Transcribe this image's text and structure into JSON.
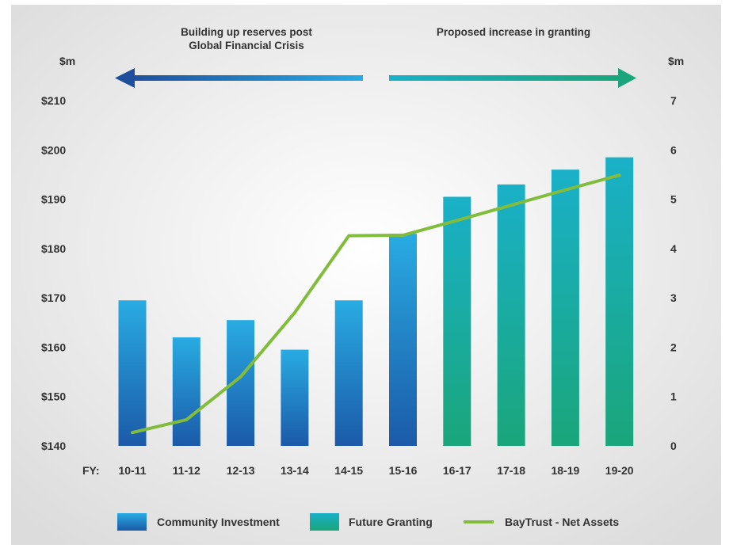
{
  "chart_data": {
    "type": "bar",
    "title": "",
    "annotations": {
      "left": "Building up reserves post\nGlobal Financial Crisis",
      "right": "Proposed increase in granting"
    },
    "left_axis": {
      "label": "$m",
      "ticks": [
        "$210",
        "$200",
        "$190",
        "$180",
        "$170",
        "$160",
        "$150",
        "$140"
      ],
      "range": [
        140,
        210
      ]
    },
    "right_axis": {
      "label": "$m",
      "ticks": [
        "7",
        "6",
        "5",
        "4",
        "3",
        "2",
        "1",
        "0"
      ],
      "range": [
        0,
        7
      ]
    },
    "x_prefix": "FY:",
    "categories": [
      "10-11",
      "11-12",
      "12-13",
      "13-14",
      "14-15",
      "15-16",
      "16-17",
      "17-18",
      "18-19",
      "19-20"
    ],
    "series": [
      {
        "name": "Community Investment",
        "type": "bar",
        "axis": "right",
        "color_top": "#29abe2",
        "color_bottom": "#1b5aa8",
        "values": [
          2.95,
          2.2,
          2.55,
          1.95,
          2.95,
          4.3,
          null,
          null,
          null,
          null
        ]
      },
      {
        "name": "Future Granting",
        "type": "bar",
        "axis": "right",
        "color_top": "#1ab0c8",
        "color_bottom": "#1aa67a",
        "values": [
          null,
          null,
          null,
          null,
          null,
          null,
          5.05,
          5.3,
          5.6,
          5.85
        ]
      },
      {
        "name": "BayTrust - Net Assets",
        "type": "line",
        "axis": "left",
        "color": "#82bc3c",
        "values": [
          142.7,
          145.3,
          154,
          167,
          182.6,
          182.7,
          185.7,
          188.8,
          191.9,
          194.9
        ]
      }
    ],
    "legend": [
      "Community Investment",
      "Future Granting",
      "BayTrust - Net Assets"
    ],
    "legend_position": "bottom",
    "colors": {
      "arrow_left_start": "#1e4e9c",
      "arrow_left_end": "#29abe2",
      "arrow_right_start": "#1ab0c8",
      "arrow_right_end": "#1aa67a"
    },
    "grid": false
  }
}
